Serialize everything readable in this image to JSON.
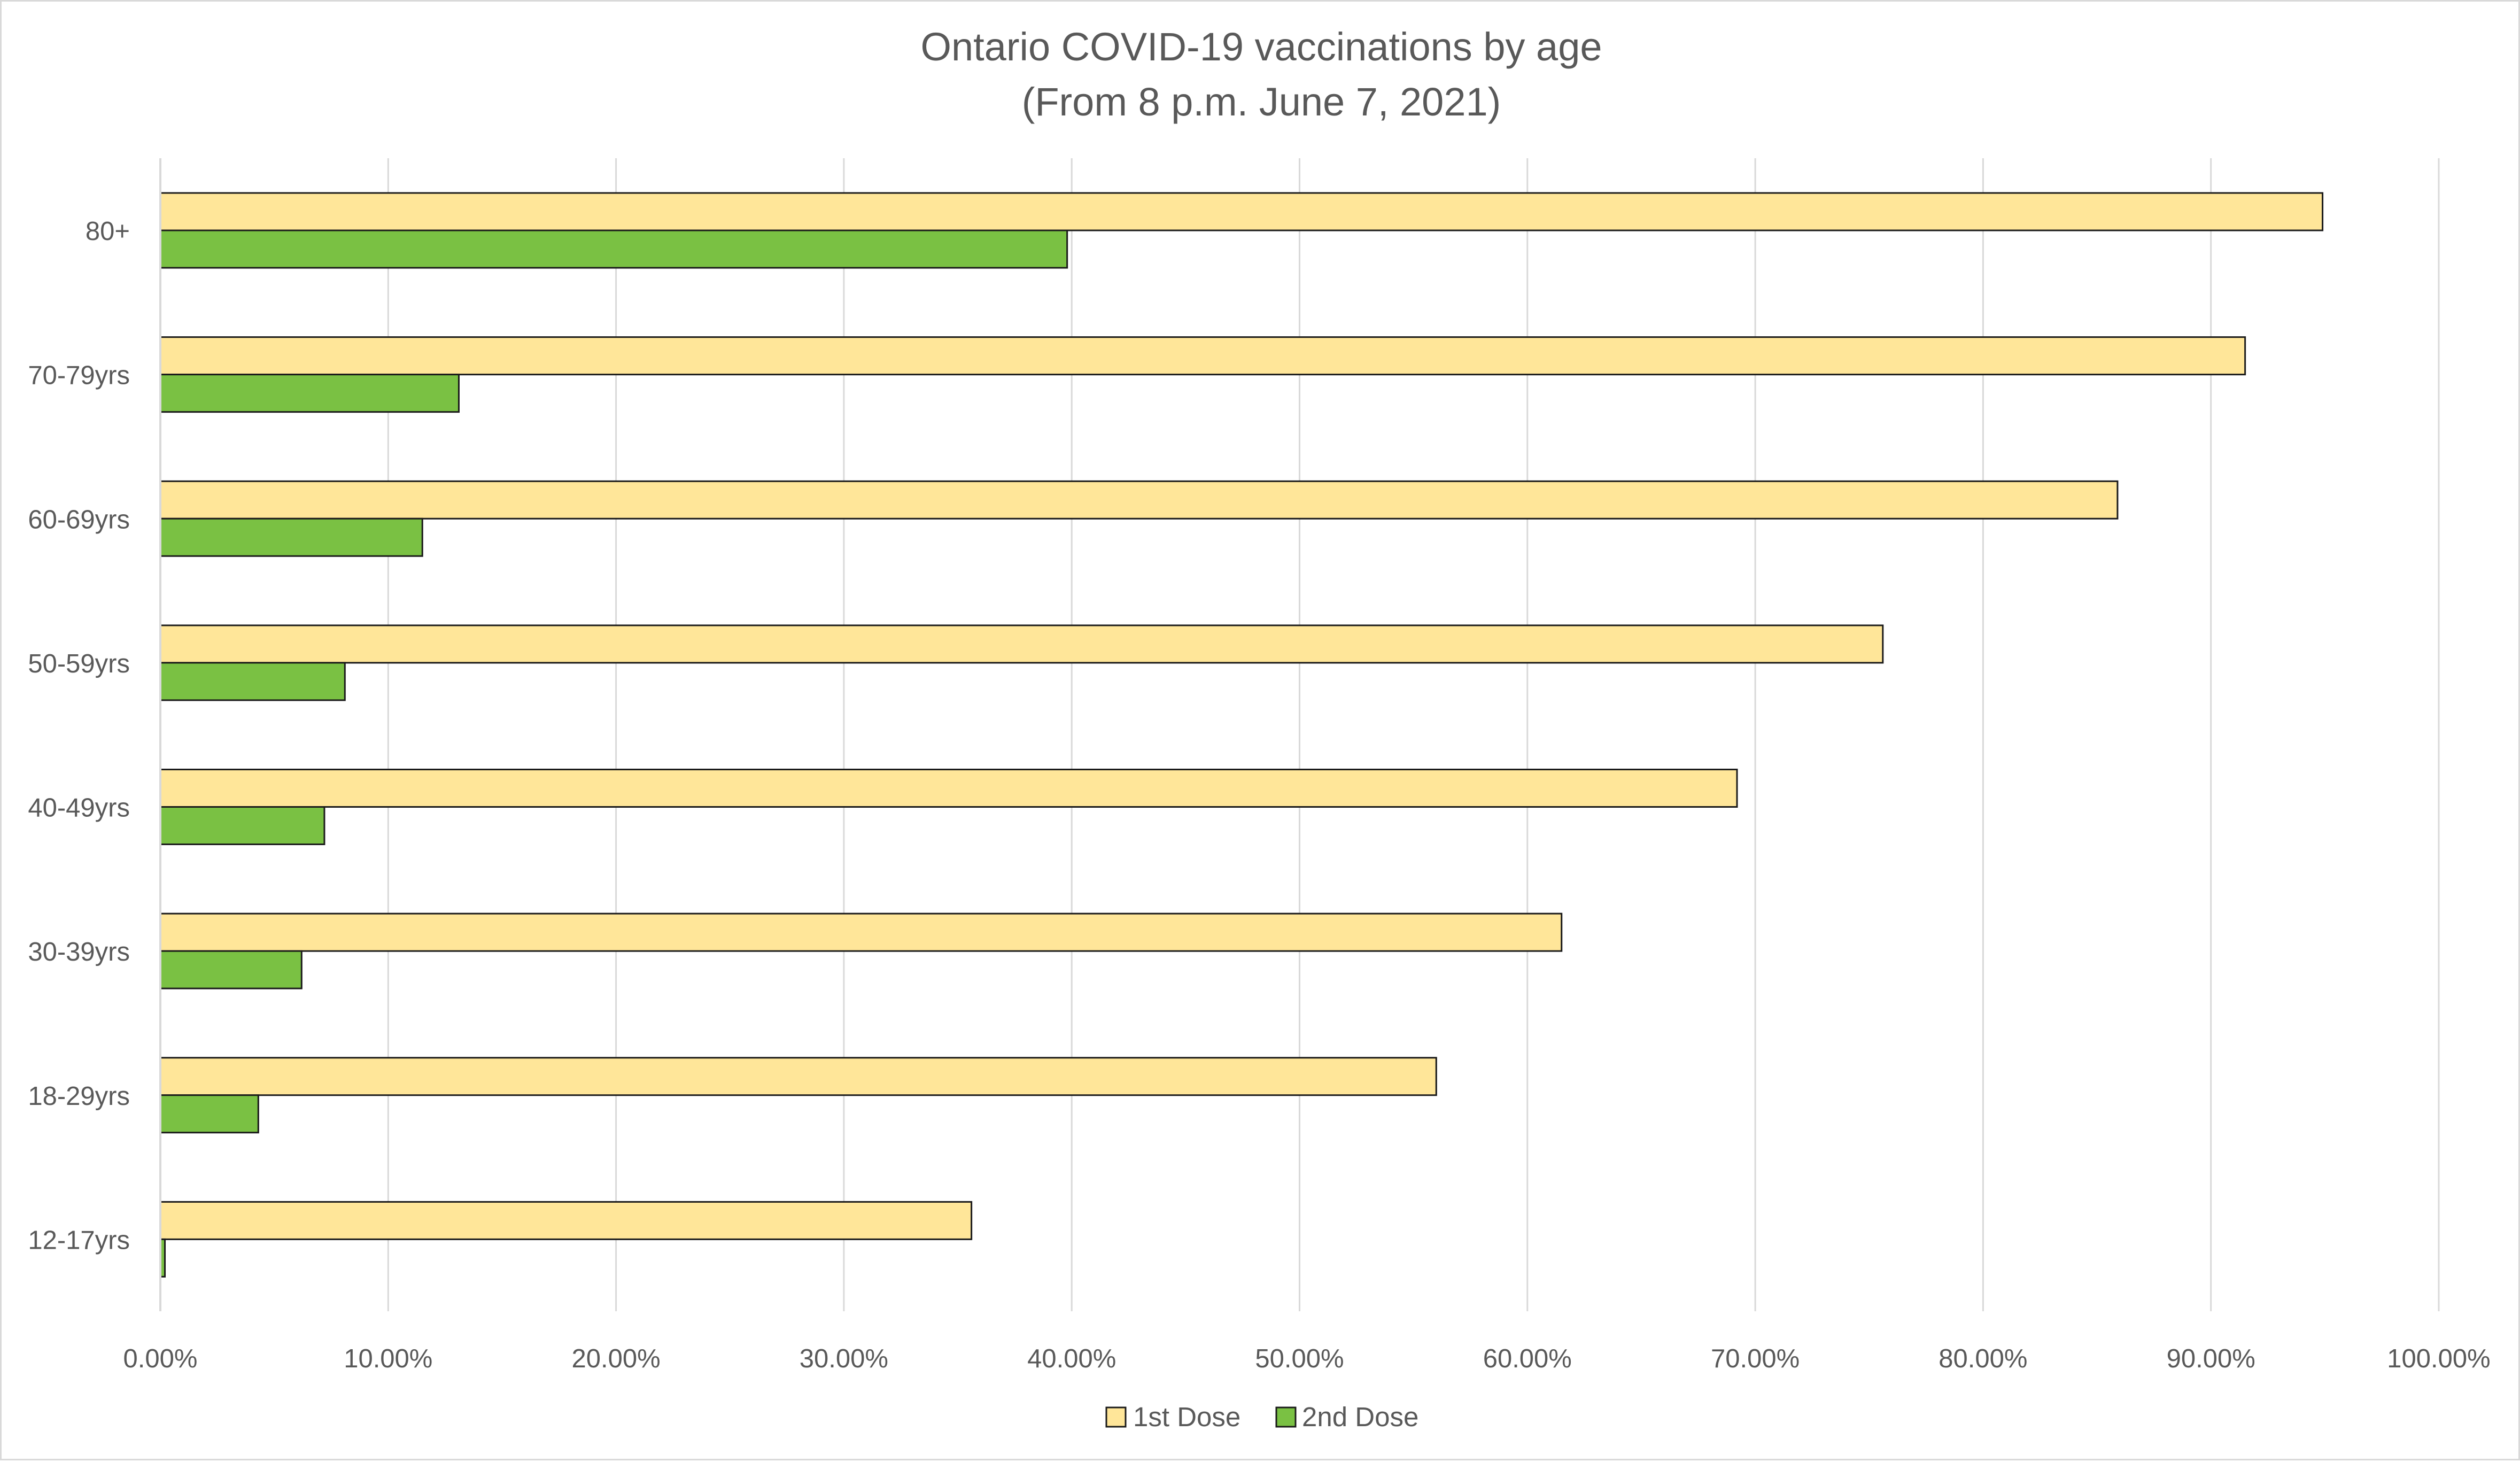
{
  "chart_data": {
    "type": "bar",
    "orientation": "horizontal",
    "title": "Ontario COVID-19 vaccinations by age",
    "subtitle": "(From 8 p.m. June 7, 2021)",
    "xlabel": "",
    "ylabel": "",
    "xlim": [
      0,
      100
    ],
    "x_ticks": [
      "0.00%",
      "10.00%",
      "20.00%",
      "30.00%",
      "40.00%",
      "50.00%",
      "60.00%",
      "70.00%",
      "80.00%",
      "90.00%",
      "100.00%"
    ],
    "x_tick_values": [
      0,
      10,
      20,
      30,
      40,
      50,
      60,
      70,
      80,
      90,
      100
    ],
    "grid": "vertical",
    "legend_position": "bottom-center",
    "categories": [
      "80+",
      "70-79yrs",
      "60-69yrs",
      "50-59yrs",
      "40-49yrs",
      "30-39yrs",
      "18-29yrs",
      "12-17yrs"
    ],
    "series": [
      {
        "name": "1st Dose",
        "color": "#ffe699",
        "values": [
          94.9,
          91.5,
          85.9,
          75.6,
          69.2,
          61.5,
          56.0,
          35.6
        ]
      },
      {
        "name": "2nd Dose",
        "color": "#7ac143",
        "values": [
          39.8,
          13.1,
          11.5,
          8.1,
          7.2,
          6.2,
          4.3,
          0.2
        ]
      }
    ]
  }
}
